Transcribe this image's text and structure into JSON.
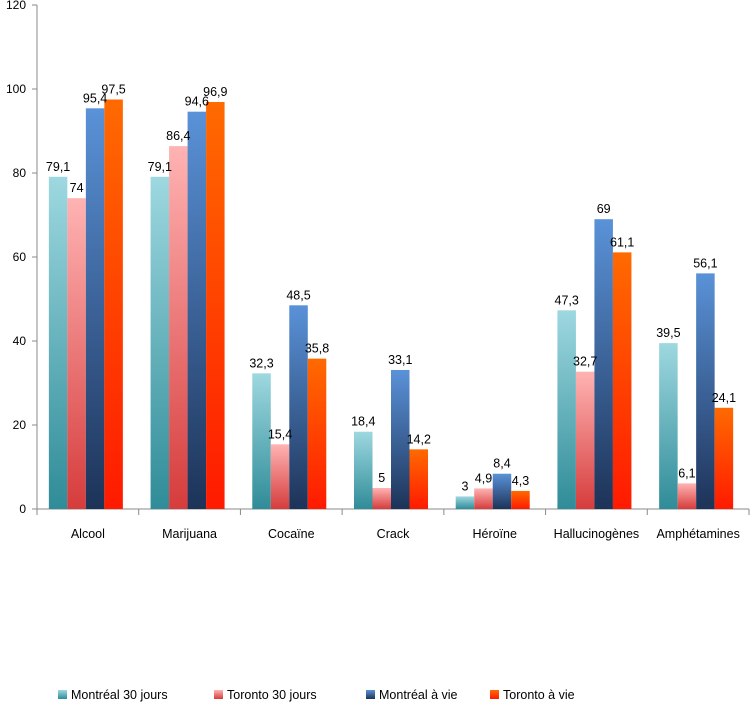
{
  "chart_data": {
    "type": "bar",
    "categories": [
      "Alcool",
      "Marijuana",
      "Cocaïne",
      "Crack",
      "Héroïne",
      "Hallucinogènes",
      "Amphétamines"
    ],
    "series": [
      {
        "name": "Montréal 30 jours",
        "values": [
          79.1,
          79.1,
          32.3,
          18.4,
          3,
          47.3,
          39.5
        ],
        "labels": [
          "79,1",
          "79,1",
          "32,3",
          "18,4",
          "3",
          "47,3",
          "39,5"
        ],
        "colors": [
          "#9ed8e0",
          "#2f8c98"
        ]
      },
      {
        "name": "Toronto 30 jours",
        "values": [
          74,
          86.4,
          15.4,
          5,
          4.9,
          32.7,
          6.1
        ],
        "labels": [
          "74",
          "86,4",
          "15,4",
          "5",
          "4,9",
          "32,7",
          "6,1"
        ],
        "colors": [
          "#ffb3b3",
          "#d63c3c"
        ]
      },
      {
        "name": "Montréal à vie",
        "values": [
          95.4,
          94.6,
          48.5,
          33.1,
          8.4,
          69,
          56.1
        ],
        "labels": [
          "95,4",
          "94,6",
          "48,5",
          "33,1",
          "8,4",
          "69",
          "56,1"
        ],
        "colors": [
          "#5a92d8",
          "#1d3358"
        ]
      },
      {
        "name": "Toronto à vie",
        "values": [
          97.5,
          96.9,
          35.8,
          14.2,
          4.3,
          61.1,
          24.1
        ],
        "labels": [
          "97,5",
          "96,9",
          "35,8",
          "14,2",
          "4,3",
          "61,1",
          "24,1"
        ],
        "colors": [
          "#ff6a00",
          "#ff1a00"
        ]
      }
    ],
    "ylim": [
      0,
      120
    ],
    "yticks": [
      "0",
      "20",
      "40",
      "60",
      "80",
      "100",
      "120"
    ],
    "legend_position": "bottom",
    "grid": false
  }
}
